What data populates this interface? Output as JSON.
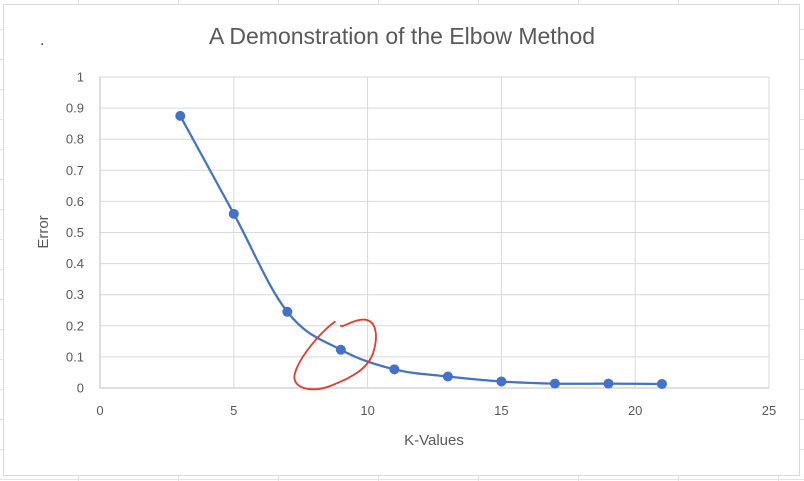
{
  "chart_data": {
    "type": "scatter",
    "title": "A Demonstration of the Elbow Method",
    "xlabel": "K-Values",
    "ylabel": "Error",
    "xlim": [
      0,
      25
    ],
    "ylim": [
      0,
      1
    ],
    "x_ticks": [
      "0",
      "5",
      "10",
      "15",
      "20",
      "25"
    ],
    "y_ticks": [
      "0",
      "0.1",
      "0.2",
      "0.3",
      "0.4",
      "0.5",
      "0.6",
      "0.7",
      "0.8",
      "0.9",
      "1"
    ],
    "grid": true,
    "legend": "none",
    "series": [
      {
        "color": "#4472c4",
        "points": [
          {
            "x": 3,
            "y": 0.875
          },
          {
            "x": 5,
            "y": 0.56
          },
          {
            "x": 7,
            "y": 0.245
          },
          {
            "x": 9,
            "y": 0.123
          },
          {
            "x": 11,
            "y": 0.06
          },
          {
            "x": 13,
            "y": 0.037
          },
          {
            "x": 15,
            "y": 0.021
          },
          {
            "x": 17,
            "y": 0.014
          },
          {
            "x": 19,
            "y": 0.014
          },
          {
            "x": 21,
            "y": 0.013
          }
        ]
      }
    ],
    "annotations": [
      {
        "kind": "hand-drawn circle",
        "color": "#e03c31",
        "around": {
          "x": 9,
          "y": 0.123
        }
      }
    ],
    "stray_mark": "."
  }
}
